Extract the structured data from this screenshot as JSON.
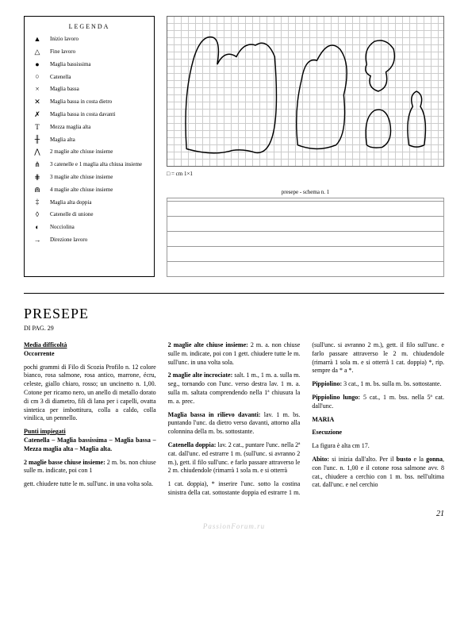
{
  "legend": {
    "title": "LEGENDA",
    "items": [
      {
        "sym": "▲",
        "txt": "Inizio lavoro"
      },
      {
        "sym": "△",
        "txt": "Fine lavoro"
      },
      {
        "sym": "●",
        "txt": "Maglia bassissima"
      },
      {
        "sym": "○",
        "txt": "Catenella"
      },
      {
        "sym": "×",
        "txt": "Maglia bassa"
      },
      {
        "sym": "✕",
        "txt": "Maglia bassa in costa dietro"
      },
      {
        "sym": "✗",
        "txt": "Maglia bassa in costa davanti"
      },
      {
        "sym": "T",
        "txt": "Mezza maglia alta"
      },
      {
        "sym": "╫",
        "txt": "Maglia alta"
      },
      {
        "sym": "⋀",
        "txt": "2 maglie alte chiuse insieme"
      },
      {
        "sym": "⋔",
        "txt": "3 catenelle e 1 maglia alta chiusa insieme"
      },
      {
        "sym": "⋕",
        "txt": "3 maglie alte chiuse insieme"
      },
      {
        "sym": "⋒",
        "txt": "4 maglie alte chiuse insieme"
      },
      {
        "sym": "‡",
        "txt": "Maglia alta doppia"
      },
      {
        "sym": "◊",
        "txt": "Catenelle di unione"
      },
      {
        "sym": "◐",
        "txt": "Nocciolina"
      },
      {
        "sym": "→",
        "txt": "Direzione lavoro"
      }
    ]
  },
  "grid": {
    "caption": "□ = cm 1×1"
  },
  "schema": {
    "caption": "presepe - schema n. 1"
  },
  "title": "PRESEPE",
  "subtitle": "DI PAG. 29",
  "col1": {
    "h1": "Media difficoltà",
    "h2": "Occorrente",
    "p1": "pochi grammi di Filo di Scozia Profilo n. 12 colore bianco, rosa salmone, rosa antico, marrone, écru, celeste, giallo chiaro, rosso; un uncinetto n. 1,00. Cotone per ricamo nero, un anello di metallo dorato di cm 3 di diametro, fili di lana per i capelli, ovatta sintetica per imbottitura, colla a caldo, colla vinilica, un pennello.",
    "h3": "Punti impiegati",
    "p2": "Catenella – Maglia bassissima – Maglia bassa – Mezza maglia alta – Maglia alta.",
    "h4": "2 maglie basse chiuse insieme:",
    "p3": "2 m. bs. non chiuse sulle m. indicate, poi con 1"
  },
  "col2": {
    "p1": "gett. chiudere tutte le m. sull'unc. in una volta sola.",
    "h1": "2 maglie alte chiuse insieme:",
    "p2": "2 m. a. non chiuse sulle m. indicate, poi con 1 gett. chiudere tutte le m. sull'unc. in una volta sola.",
    "h2": "2 maglie alte incrociate:",
    "p3": "salt. 1 m., 1 m. a. sulla m. seg., tornando con l'unc. verso destra lav. 1 m. a. sulla m. saltata comprendendo nella 1ª chiusura la m. a. prec.",
    "h3": "Maglia bassa in rilievo davanti:",
    "p4": "lav. 1 m. bs. puntando l'unc. da dietro verso davanti, attorno alla colonnina della m. bs. sottostante.",
    "h4": "Catenella doppia:",
    "p5": "lav. 2 cat., puntare l'unc. nella 2ª cat. dall'unc. ed estrarre 1 m. (sull'unc. si avranno 2 m.), gett. il filo sull'unc. e farlo passare attraverso le 2 m. chiudendole (rimarrà 1 sola m. e si otterrà"
  },
  "col3": {
    "p1": "1 cat. doppia), * inserire l'unc. sotto la costina sinistra della cat. sottostante doppia ed estrarre 1 m. (sull'unc. si avranno 2 m.), gett. il filo sull'unc. e farlo passare attraverso le 2 m. chiudendole (rimarrà 1 sola m. e si otterrà 1 cat. doppia) *, rip. sempre da * a *.",
    "h1": "Pippiolino:",
    "p2": "3 cat., 1 m. bs. sulla m. bs. sottostante.",
    "h2": "Pippiolino lungo:",
    "p3": "5 cat., 1 m. bss. nella 5ª cat. dall'unc.",
    "h3": "MARIA",
    "h4": "Esecuzione",
    "p4": "La figura è alta cm 17.",
    "h5": "Abito:",
    "p5": "si inizia dall'alto. Per il ",
    "b1": "busto",
    "p6": " e la ",
    "b2": "gonna",
    "p7": ", con l'unc. n. 1,00 e il cotone rosa salmone avv. 8 cat., chiudere a cerchio con 1 m. bss. nell'ultima cat. dall'unc. e nel cerchio"
  },
  "page": "21",
  "watermark": "PassionForum.ru"
}
